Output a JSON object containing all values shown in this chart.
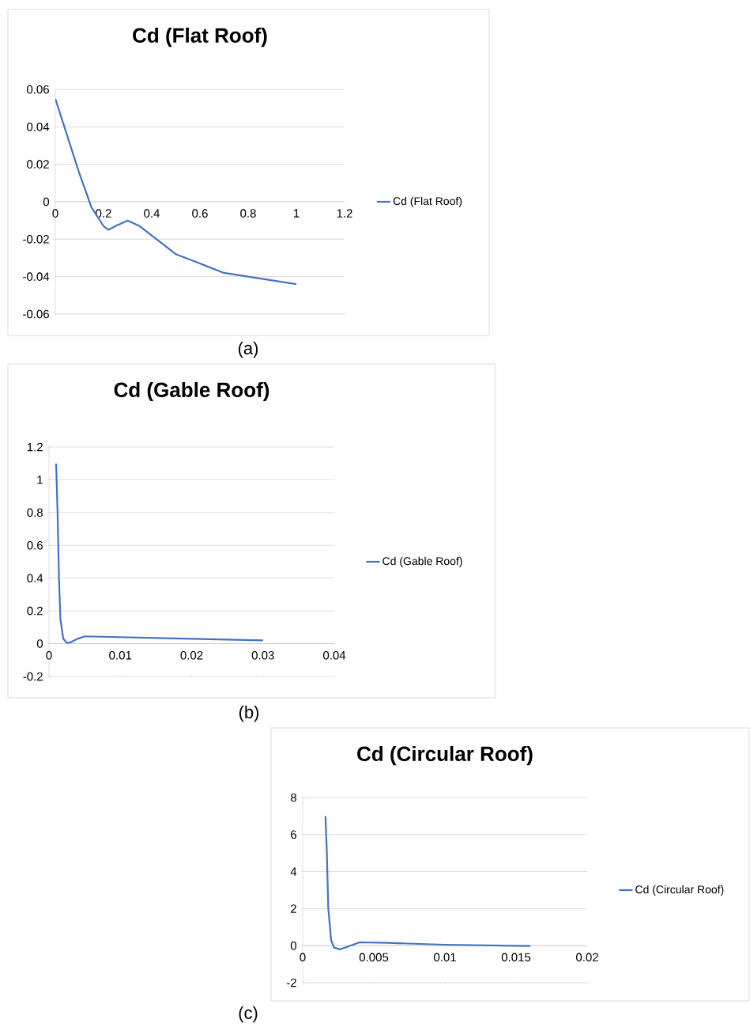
{
  "chart_data": [
    {
      "type": "line",
      "title": "Cd (Flat Roof)",
      "annotations": [
        "(a)"
      ],
      "legend": "right",
      "grid": "y",
      "x": [
        0,
        0.05,
        0.1,
        0.15,
        0.2,
        0.22,
        0.25,
        0.3,
        0.35,
        0.4,
        0.45,
        0.5,
        0.6,
        0.7,
        0.8,
        0.9,
        1
      ],
      "series": [
        {
          "name": "Cd (Flat Roof)",
          "color": "#4472c4",
          "values": [
            0.055,
            0.035,
            0.015,
            -0.003,
            -0.013,
            -0.015,
            -0.013,
            -0.01,
            -0.013,
            -0.018,
            -0.023,
            -0.028,
            -0.033,
            -0.038,
            -0.04,
            -0.042,
            -0.044
          ]
        }
      ],
      "xlim": [
        0,
        1.2
      ],
      "ylim": [
        -0.06,
        0.06
      ],
      "xticks": [
        0,
        0.2,
        0.4,
        0.6,
        0.8,
        1,
        1.2
      ],
      "yticks": [
        -0.06,
        -0.04,
        -0.02,
        0,
        0.02,
        0.04,
        0.06
      ]
    },
    {
      "type": "line",
      "title": "Cd (Gable Roof)",
      "annotations": [
        "(b)"
      ],
      "legend": "right",
      "grid": "y",
      "x": [
        0.001,
        0.0012,
        0.0014,
        0.0016,
        0.002,
        0.0025,
        0.003,
        0.004,
        0.005,
        0.01,
        0.02,
        0.03
      ],
      "series": [
        {
          "name": "Cd (Gable Roof)",
          "color": "#4472c4",
          "values": [
            1.1,
            0.8,
            0.4,
            0.15,
            0.03,
            0.005,
            0.008,
            0.03,
            0.045,
            0.04,
            0.03,
            0.02
          ]
        }
      ],
      "xlim": [
        0,
        0.04
      ],
      "ylim": [
        -0.2,
        1.2
      ],
      "xticks": [
        0,
        0.01,
        0.02,
        0.03,
        0.04
      ],
      "yticks": [
        -0.2,
        0,
        0.2,
        0.4,
        0.6,
        0.8,
        1,
        1.2
      ]
    },
    {
      "type": "line",
      "title": "Cd (Circular Roof)",
      "annotations": [
        "(c)"
      ],
      "legend": "right",
      "grid": "y",
      "x": [
        0.0016,
        0.0017,
        0.0018,
        0.002,
        0.0022,
        0.0026,
        0.003,
        0.004,
        0.006,
        0.01,
        0.014,
        0.016
      ],
      "series": [
        {
          "name": "Cd (Circular Roof)",
          "color": "#4472c4",
          "values": [
            7,
            5,
            2,
            0.3,
            -0.1,
            -0.2,
            -0.1,
            0.18,
            0.15,
            0.05,
            0,
            -0.02
          ]
        }
      ],
      "xlim": [
        0,
        0.02
      ],
      "ylim": [
        -2,
        8
      ],
      "xticks": [
        0,
        0.005,
        0.01,
        0.015,
        0.02
      ],
      "yticks": [
        -2,
        0,
        2,
        4,
        6,
        8
      ]
    }
  ]
}
